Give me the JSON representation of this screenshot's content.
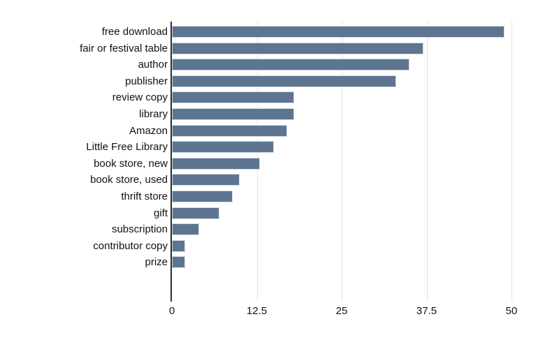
{
  "chart_data": {
    "type": "bar",
    "orientation": "horizontal",
    "title": "",
    "xlabel": "",
    "ylabel": "",
    "categories": [
      "free download",
      "fair or festival table",
      "author",
      "publisher",
      "review copy",
      "library",
      "Amazon",
      "Little Free Library",
      "book store, new",
      "book store, used",
      "thrift store",
      "gift",
      "subscription",
      "contributor copy",
      "prize"
    ],
    "values": [
      49,
      37,
      35,
      33,
      18,
      18,
      17,
      15,
      13,
      10,
      9,
      7,
      4,
      2,
      2
    ],
    "xlim": [
      0,
      50
    ],
    "xticks": [
      0,
      12.5,
      25,
      37.5,
      50
    ],
    "xtick_labels": [
      "0",
      "12.5",
      "25",
      "37.5",
      "50"
    ],
    "grid": true,
    "legend": false,
    "colors": {
      "bar_fill": "#5d7590",
      "bar_border": "#d7dde4",
      "gridline": "#e3e3e3",
      "axis_line": "#2b2b2b",
      "text": "#111111",
      "background": "#ffffff"
    }
  }
}
